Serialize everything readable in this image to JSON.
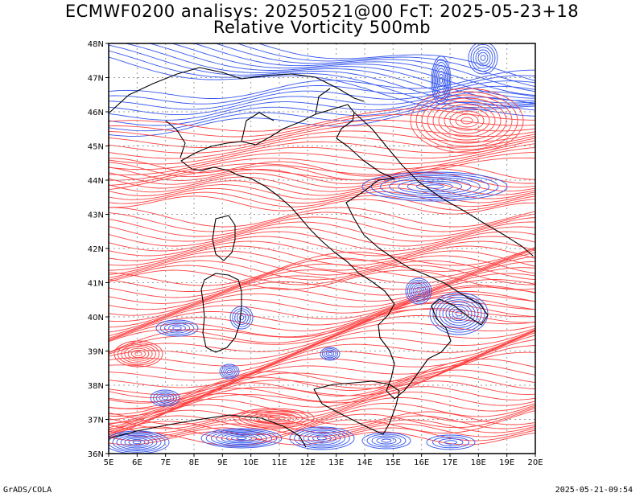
{
  "title_line1": "ECMWF0200 analisys: 20250521@00 FcT: 2025-05-23+18",
  "title_line2": "Relative Vorticity 500mb",
  "footer_left": "GrADS/COLA",
  "footer_right": "2025-05-21-09:54",
  "map": {
    "lon_range": [
      5,
      20
    ],
    "lat_range": [
      36,
      48
    ],
    "lon_labels": [
      "5E",
      "6E",
      "7E",
      "8E",
      "9E",
      "10E",
      "11E",
      "12E",
      "13E",
      "14E",
      "15E",
      "16E",
      "17E",
      "18E",
      "19E",
      "20E"
    ],
    "lat_labels": [
      "36N",
      "37N",
      "38N",
      "39N",
      "40N",
      "41N",
      "42N",
      "43N",
      "44N",
      "45N",
      "46N",
      "47N",
      "48N"
    ],
    "grid": true,
    "colors": {
      "positive": "#ff4040",
      "negative": "#3355ee",
      "zero": "#a070c0",
      "grid": "#999999",
      "border": "#000000"
    }
  }
}
